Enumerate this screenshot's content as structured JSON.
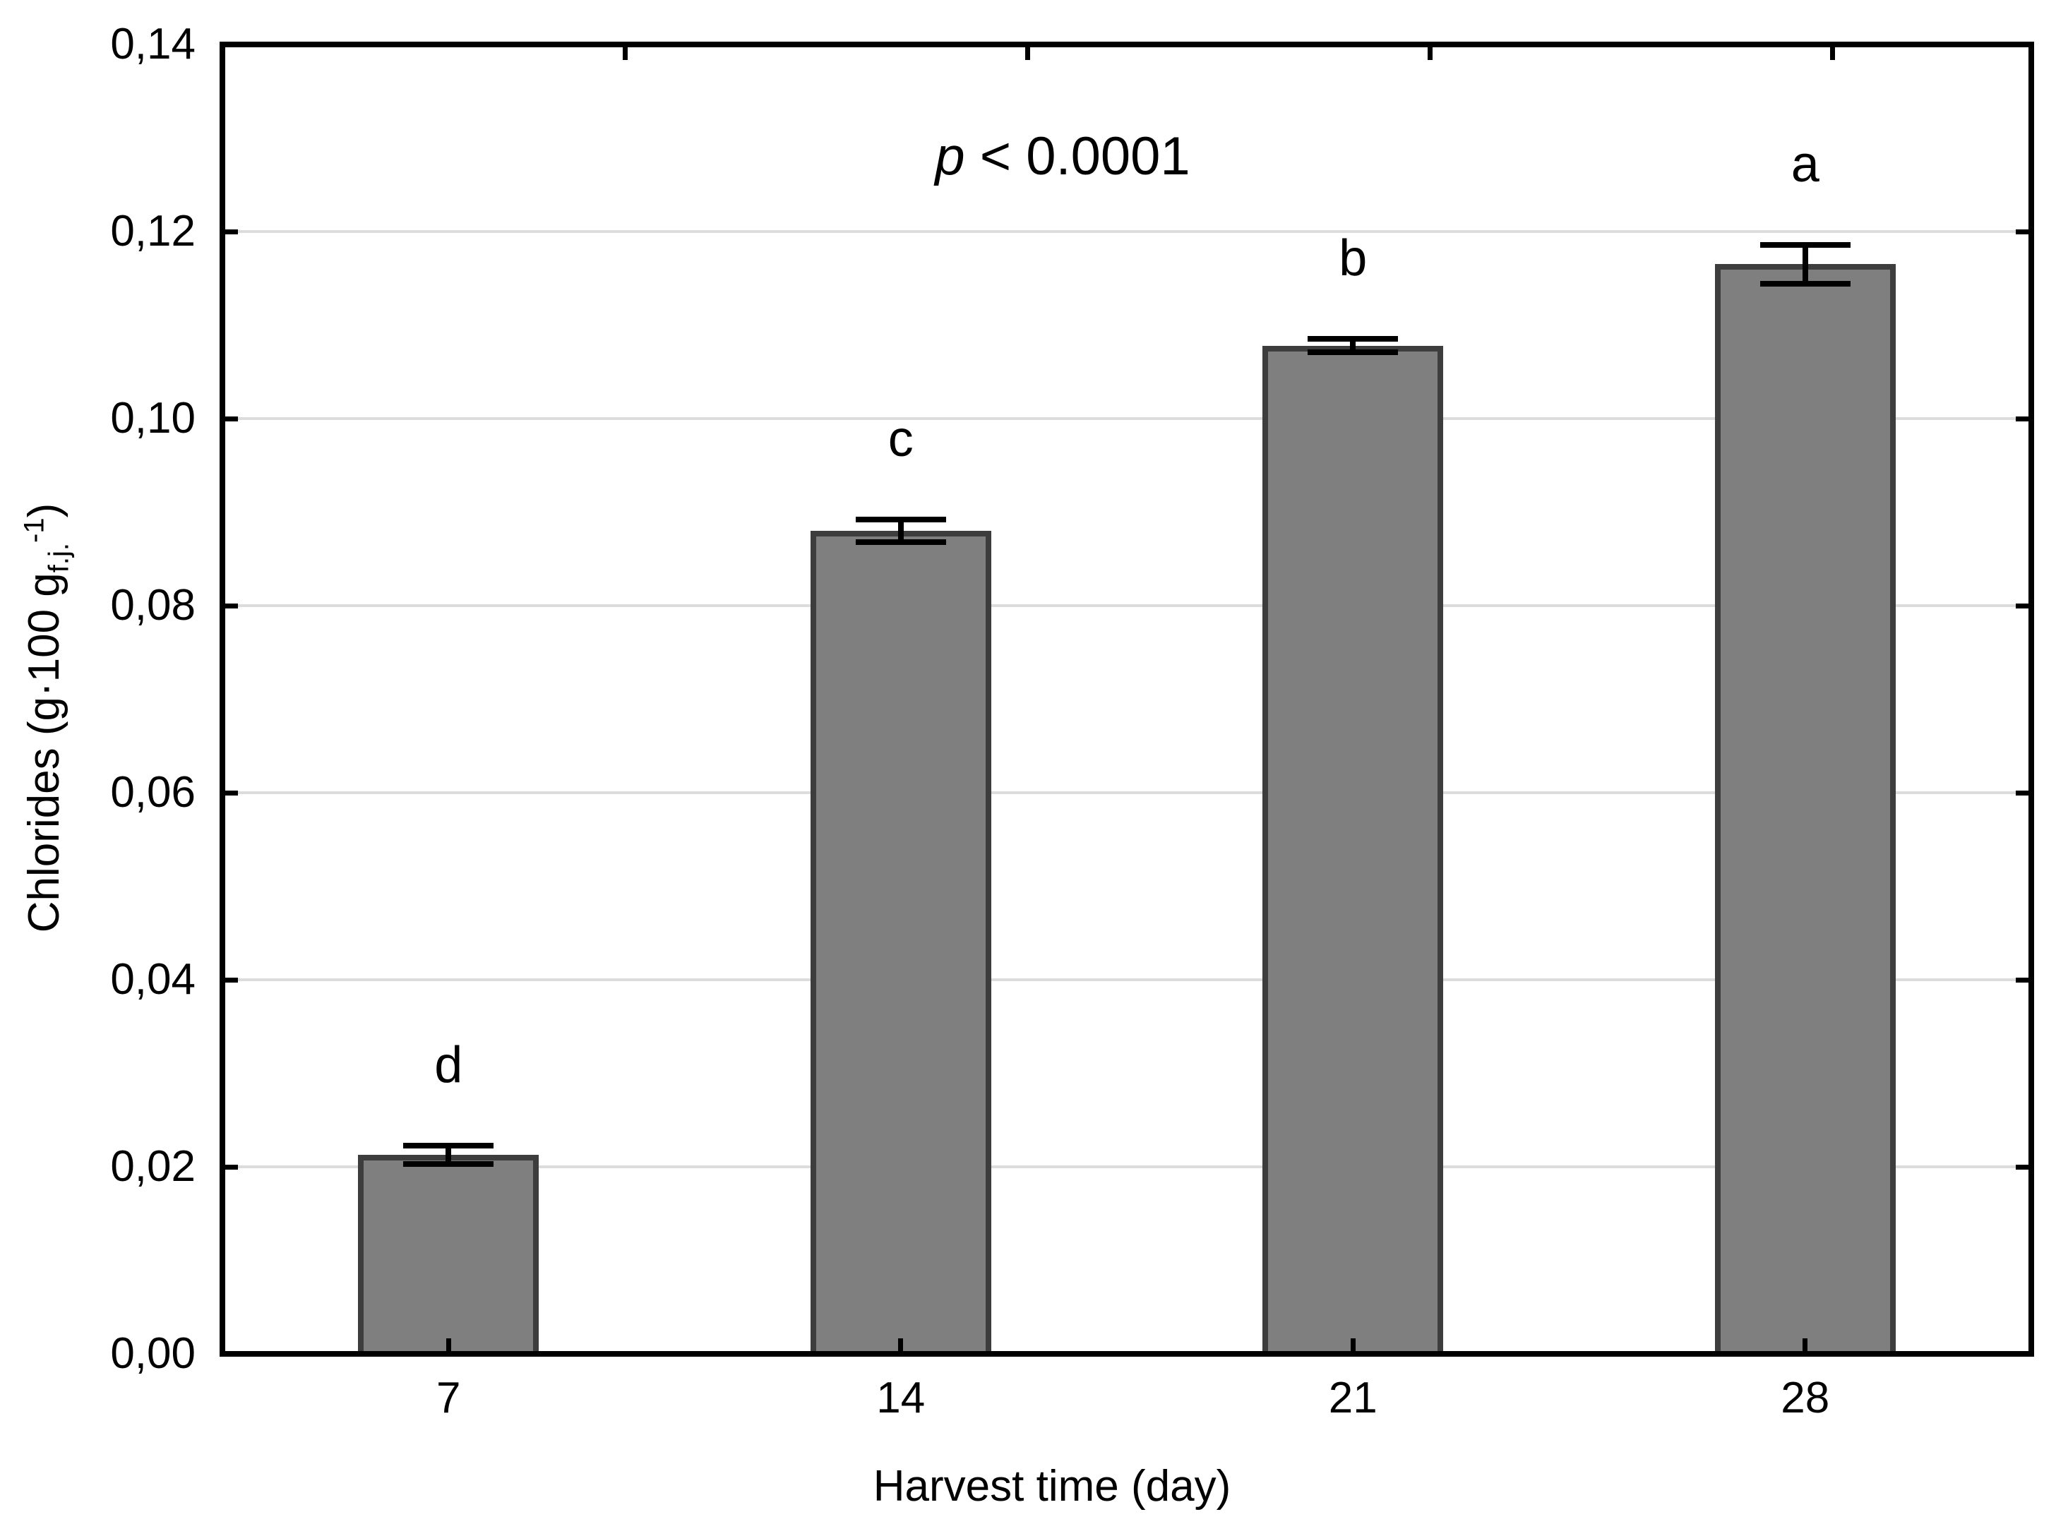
{
  "chart_data": {
    "type": "bar",
    "title": "",
    "annotation": {
      "full": "p < 0.0001",
      "var_italic": "p",
      "rest": " < 0.0001"
    },
    "xlabel": "Harvest time (day)",
    "ylabel": {
      "full": "Chlorides (g·100 g_f.j.^-1)",
      "prefix": "Chlorides (g·100 g",
      "sub": "f.j.",
      "sup": "-1",
      "suffix": ")"
    },
    "categories": [
      "7",
      "14",
      "21",
      "28"
    ],
    "series": [
      {
        "name": "Chlorides",
        "values": [
          0.0213,
          0.088,
          0.1078,
          0.1165
        ],
        "errors": [
          0.001,
          0.0012,
          0.0007,
          0.0021
        ],
        "sig_letters": [
          "d",
          "c",
          "b",
          "a"
        ]
      }
    ],
    "ylim": [
      0,
      0.14
    ],
    "yticks": [
      0,
      0.02,
      0.04,
      0.06,
      0.08,
      0.1,
      0.12,
      0.14
    ],
    "ytick_labels": [
      "0,00",
      "0,02",
      "0,04",
      "0,06",
      "0,08",
      "0,10",
      "0,12",
      "0,14"
    ],
    "grid": "horizontal",
    "legend": "none",
    "colors": {
      "bar_fill": "#7f7f7f",
      "bar_border": "#3d3d3d",
      "error_bar": "#000000",
      "gridline": "#dcdcdc",
      "axis": "#000000",
      "text": "#000000",
      "background": "#ffffff"
    }
  }
}
